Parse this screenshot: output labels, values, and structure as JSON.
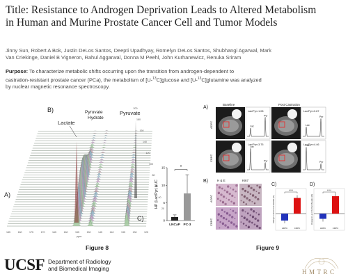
{
  "header": {
    "title_line1": "Title: Resistance to Androgen Deprivation Leads to Altered Metabolism",
    "title_line2": "in Human and Murine Prostate Cancer Cell and Tumor Models",
    "authors_line1": "Jinny Sun, Robert A Bok, Justin DeLos Santos, Deepti Upadhyay, Romelyn DeLos Santos, Shubhangi Agarwal, Mark",
    "authors_line2": "Van Criekinge, Daniel B Vigneron, Rahul Aggarwal, Donna M Peehl, John Kurhanewicz, Renuka Sriram",
    "purpose_label": "Purpose:",
    "purpose_line1": "To characterize metabolic shifts occurring upon the transition from androgen-dependent to",
    "purpose_line2a": "castration-resistant prostate cancer (PCa), the metabolism of [U-",
    "purpose_sup13a": "13",
    "purpose_line2b": "C]glucose and [U-",
    "purpose_sup13b": "13",
    "purpose_line2c": "C]glutamine was analyzed",
    "purpose_line3": "by nuclear magnetic resonance spectroscopy."
  },
  "figure8": {
    "caption": "Figure 8",
    "label_a": "A)",
    "label_b": "B)",
    "label_c": "C)",
    "peak_lactate": "Lactate",
    "peak_pyr_hydrate_1": "Pyruvate",
    "peak_pyr_hydrate_2": "Hydrate",
    "peak_pyruvate": "Pyruvate",
    "ppm_ticks": [
      "185",
      "180",
      "175",
      "170",
      "165",
      "160",
      "155",
      "150",
      "145",
      "140",
      "135",
      "130",
      "125"
    ],
    "ppm_unit": "ppm",
    "time_ticks": [
      "200",
      "180",
      "160",
      "140",
      "120",
      "100",
      "80",
      "60",
      "40",
      "20"
    ],
    "bar_ylabel": "HP (Lac/Pyr) AUC",
    "significance": "*",
    "color_lncap": "#222222",
    "color_pc3": "#999999"
  },
  "figure9": {
    "caption": "Figure 9",
    "label_a": "A)",
    "label_b": "B)",
    "label_c": "C)",
    "label_d": "D)",
    "col_baseline": "Baseline",
    "col_post": "Post Castration",
    "row_adpc": "ADPC",
    "row_crpc": "CRPC",
    "ratio_1": "Lac/Pyr=1.08",
    "ratio_2": "Lac/Pyr=0.87",
    "ratio_3": "Lac/Pyr=3.75",
    "ratio_4": "Lac/Pyr=4.46",
    "peak_pyr": "Pyr",
    "peak_lac": "Lac",
    "he": "H & E",
    "ki67": "Ki67",
    "sig_c": "****",
    "sig_d": "****",
    "xcat_1": "ADPC",
    "xcat_2": "CRPC",
    "ylabel_c": "Change in tumor from baseline (%)",
    "ylabel_d": "Change in Lac / Pyr from Baseline (%)"
  },
  "chart_data": [
    {
      "type": "bar",
      "title": "",
      "categories": [
        "LNCaP",
        "PC-3"
      ],
      "values": [
        1.0,
        7.7
      ],
      "errors": [
        0.6,
        5.3
      ],
      "ylabel": "HP (Lac/Pyr) AUC",
      "xlabel": "",
      "ylim": [
        0,
        15
      ],
      "yticks": [
        0,
        5,
        10,
        15
      ],
      "grid": false,
      "annotation": "*"
    },
    {
      "type": "bar",
      "title": "",
      "categories": [
        "ADPC",
        "CRPC"
      ],
      "values": [
        -20,
        45
      ],
      "ylabel": "Change in tumor from baseline (%)",
      "annotation": "****",
      "colors": [
        "#2233bb",
        "#dd1111"
      ]
    },
    {
      "type": "bar",
      "title": "",
      "categories": [
        "ADPC",
        "CRPC"
      ],
      "values": [
        -15,
        50
      ],
      "ylabel": "Change in Lac / Pyr from Baseline (%)",
      "annotation": "****",
      "colors": [
        "#2233bb",
        "#dd1111"
      ]
    }
  ],
  "footer": {
    "logo_text": "UCSF",
    "dept_line1": "Department of Radiology",
    "dept_line2": "and Biomedical Imaging",
    "hmtrc_logo": "HMTRC"
  }
}
